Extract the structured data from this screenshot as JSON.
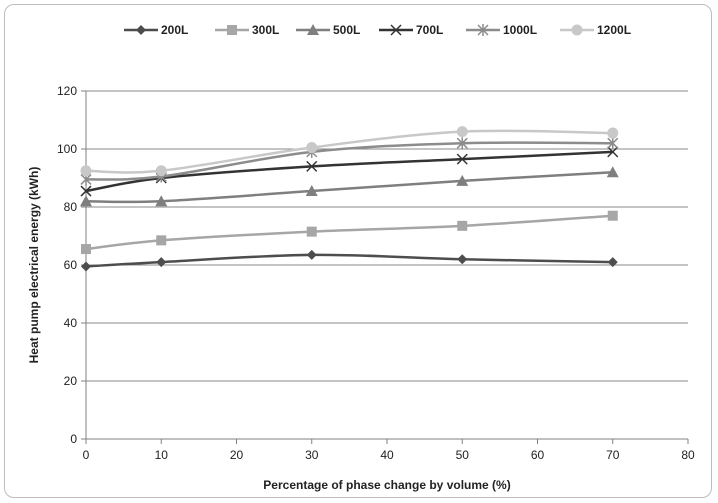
{
  "chart_data": {
    "type": "line",
    "title": "",
    "xlabel": "Percentage of phase change by volume (%)",
    "ylabel": "Heat pump electrical energy (kWh)",
    "xlim": [
      0,
      80
    ],
    "ylim": [
      0,
      120
    ],
    "xticks": [
      0,
      10,
      20,
      30,
      40,
      50,
      60,
      70,
      80
    ],
    "yticks": [
      0,
      20,
      40,
      60,
      80,
      100,
      120
    ],
    "grid": "horizontal",
    "legend_position": "top",
    "x": [
      0,
      10,
      30,
      50,
      70
    ],
    "series": [
      {
        "name": "200L",
        "marker": "diamond",
        "color": "#4d4d4d",
        "values": [
          59.5,
          61.0,
          63.5,
          62.0,
          61.0
        ]
      },
      {
        "name": "300L",
        "marker": "square",
        "color": "#a6a6a6",
        "values": [
          65.5,
          68.5,
          71.5,
          73.5,
          77.0
        ]
      },
      {
        "name": "500L",
        "marker": "triangle",
        "color": "#7f7f7f",
        "values": [
          82.0,
          82.0,
          85.5,
          89.0,
          92.0
        ]
      },
      {
        "name": "700L",
        "marker": "x",
        "color": "#333333",
        "values": [
          85.5,
          90.0,
          94.0,
          96.5,
          99.0
        ]
      },
      {
        "name": "1000L",
        "marker": "star",
        "color": "#8c8c8c",
        "values": [
          89.5,
          90.5,
          99.0,
          102.0,
          102.0
        ]
      },
      {
        "name": "1200L",
        "marker": "circle",
        "color": "#c8c8c8",
        "values": [
          92.5,
          92.5,
          100.5,
          106.0,
          105.5
        ]
      }
    ]
  }
}
